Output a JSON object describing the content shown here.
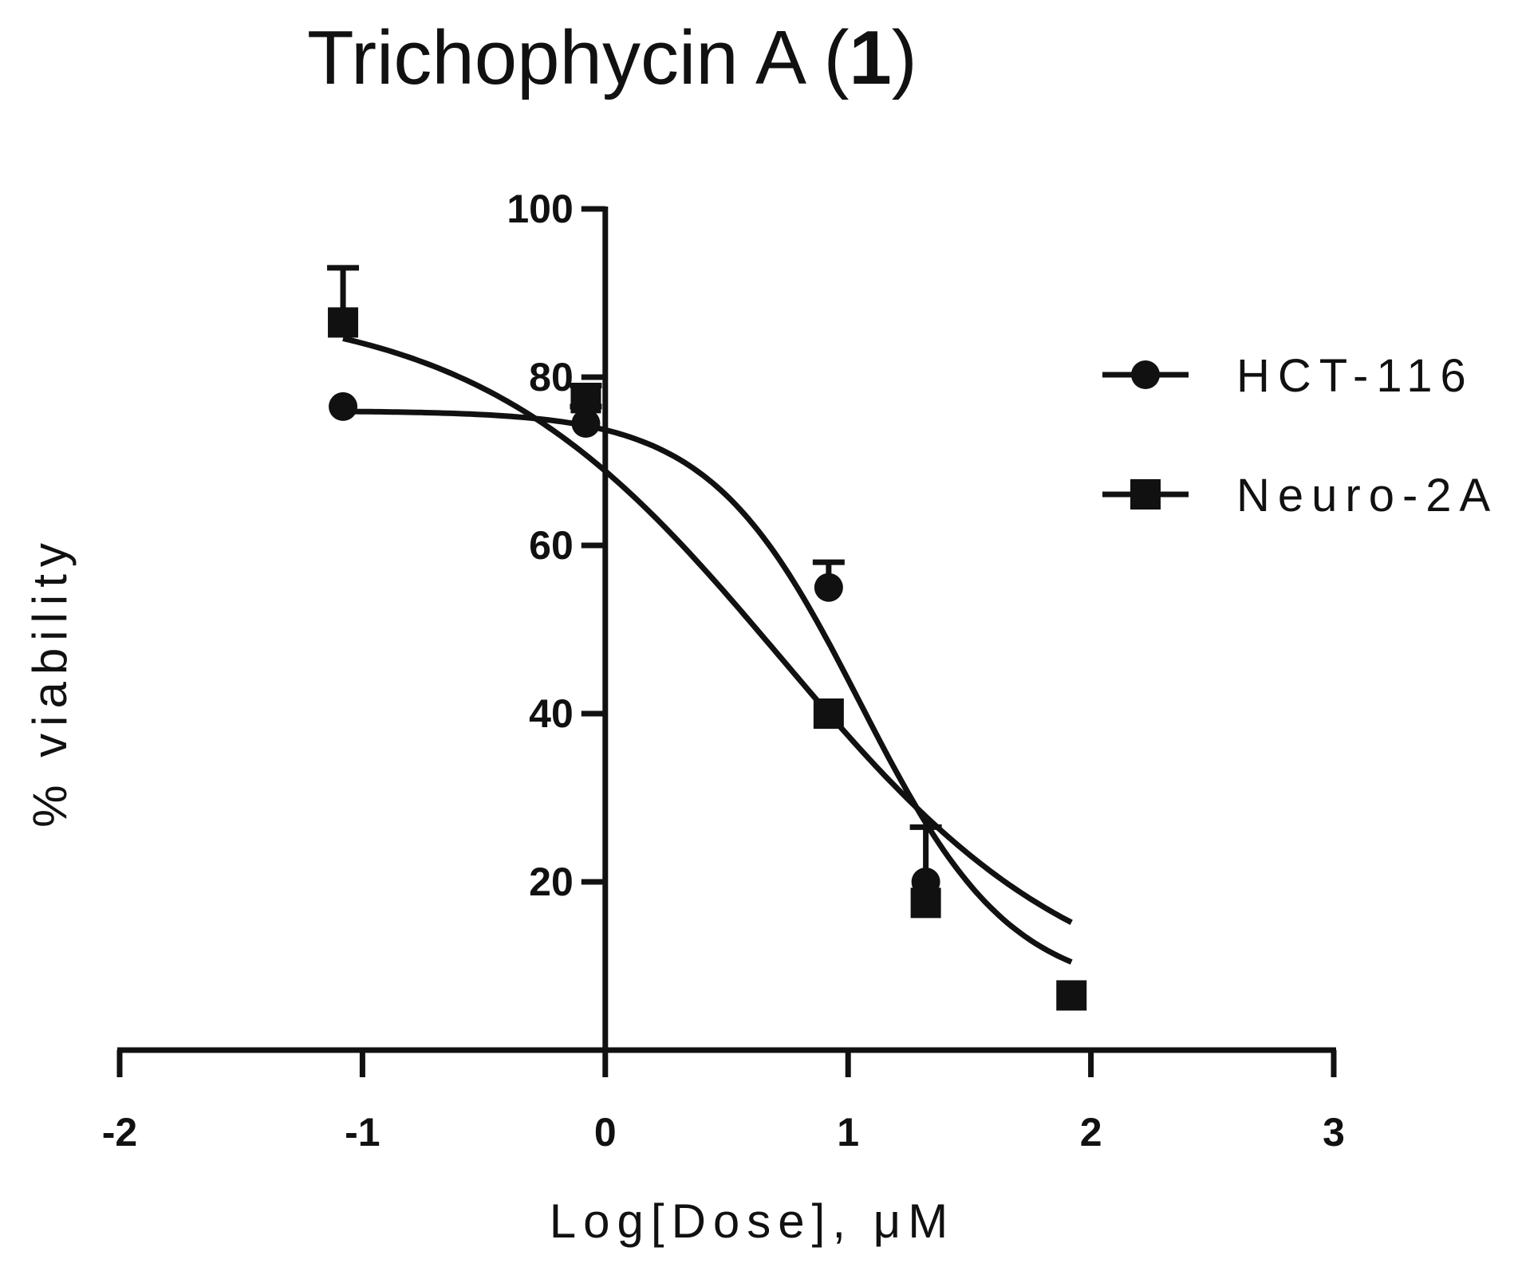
{
  "title": {
    "prefix": "Trichophycin A (",
    "bold": "1",
    "suffix": ")"
  },
  "chart_data": {
    "type": "scatter",
    "title": "Trichophycin A (1)",
    "xlabel": "Log[Dose], μM",
    "ylabel": "% viability",
    "xlim": [
      -2,
      3
    ],
    "ylim": [
      0,
      100
    ],
    "x_ticks": [
      "-2",
      "-1",
      "0",
      "1",
      "2",
      "3"
    ],
    "y_ticks": [
      "20",
      "40",
      "60",
      "80",
      "100"
    ],
    "grid": false,
    "legend_position": "right",
    "series": [
      {
        "name": "HCT-116",
        "marker": "circle",
        "color": "#111111",
        "points": [
          {
            "x": -1.08,
            "y": 76.5,
            "err": 0
          },
          {
            "x": -0.08,
            "y": 74.5,
            "err": 2
          },
          {
            "x": 0.92,
            "y": 55.0,
            "err": 3
          },
          {
            "x": 1.32,
            "y": 20.0,
            "err": 0
          },
          {
            "x": 1.92,
            "y": 6.5,
            "err": 0
          }
        ],
        "fit": {
          "bottom": 6.5,
          "top": 76.0,
          "log_ec50": 1.05,
          "hill_slope": -1.4
        }
      },
      {
        "name": "Neuro-2A",
        "marker": "square",
        "color": "#111111",
        "points": [
          {
            "x": -1.08,
            "y": 86.5,
            "err": 6.5
          },
          {
            "x": -0.08,
            "y": 77.5,
            "err": 1.5
          },
          {
            "x": 0.92,
            "y": 40.0,
            "err": 0
          },
          {
            "x": 1.32,
            "y": 17.5,
            "err": 9.0
          },
          {
            "x": 1.92,
            "y": 6.5,
            "err": 0
          }
        ],
        "fit": {
          "bottom": 4.5,
          "top": 89.0,
          "log_ec50": 0.72,
          "hill_slope": -0.7
        }
      }
    ]
  }
}
